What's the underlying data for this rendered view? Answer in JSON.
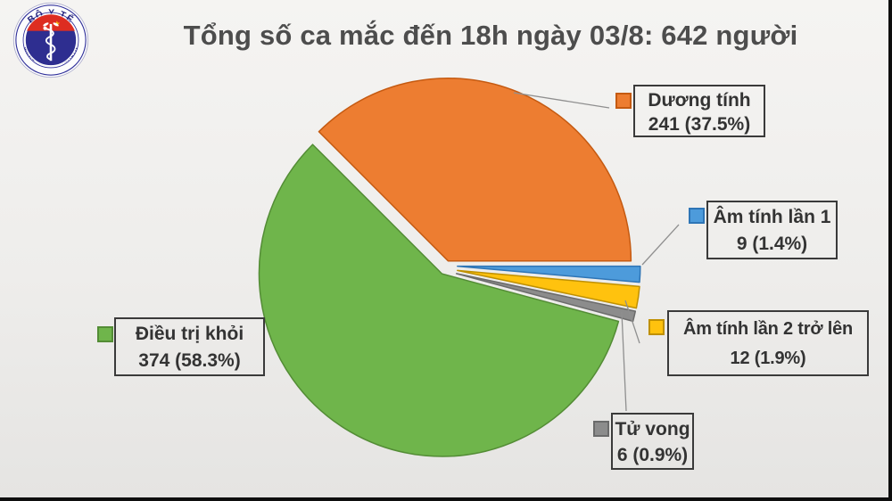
{
  "header": {
    "title": "Tổng số ca mắc đến 18h ngày 03/8: 642 người",
    "title_color": "#4d4d4d"
  },
  "logo": {
    "top_text": "BỘ Y TẾ",
    "bottom_text": "MINISTRY OF HEALTH",
    "ring_color": "#30309a",
    "inner_color": "#2e2e90",
    "band_color": "#dd2d21",
    "star": "★",
    "star_color": "#f5cf11"
  },
  "chart_data": {
    "type": "pie",
    "title": "Tổng số ca mắc đến 18h ngày 03/8: 642 người",
    "total": 642,
    "start_angle_deg": -45,
    "direction": "clockwise",
    "legend_position": "callout-labels",
    "exploded": true,
    "slices": [
      {
        "id": "duong-tinh",
        "label": "Dương tính",
        "value": 241,
        "pct": 37.5,
        "display": "241 (37.5%)",
        "color": "#ED7D31",
        "border": "#C55A11"
      },
      {
        "id": "am-tinh-lan-1",
        "label": "Âm tính lần 1",
        "value": 9,
        "pct": 1.4,
        "display": "9 (1.4%)",
        "color": "#4D9BDB",
        "border": "#2E75B6"
      },
      {
        "id": "am-tinh-lan-2",
        "label": "Âm tính lần 2 trở lên",
        "value": 12,
        "pct": 1.9,
        "display": "12 (1.9%)",
        "color": "#FFC20E",
        "border": "#BF9000"
      },
      {
        "id": "tu-vong",
        "label": "Tử vong",
        "value": 6,
        "pct": 0.9,
        "display": "6 (0.9%)",
        "color": "#8C8C8C",
        "border": "#6B6B6B"
      },
      {
        "id": "dieu-tri-khoi",
        "label": "Điều trị khỏi",
        "value": 374,
        "pct": 58.3,
        "display": "374 (58.3%)",
        "color": "#6FB54B",
        "border": "#538C35"
      }
    ],
    "leader_line_color": "#8f8f8f"
  }
}
